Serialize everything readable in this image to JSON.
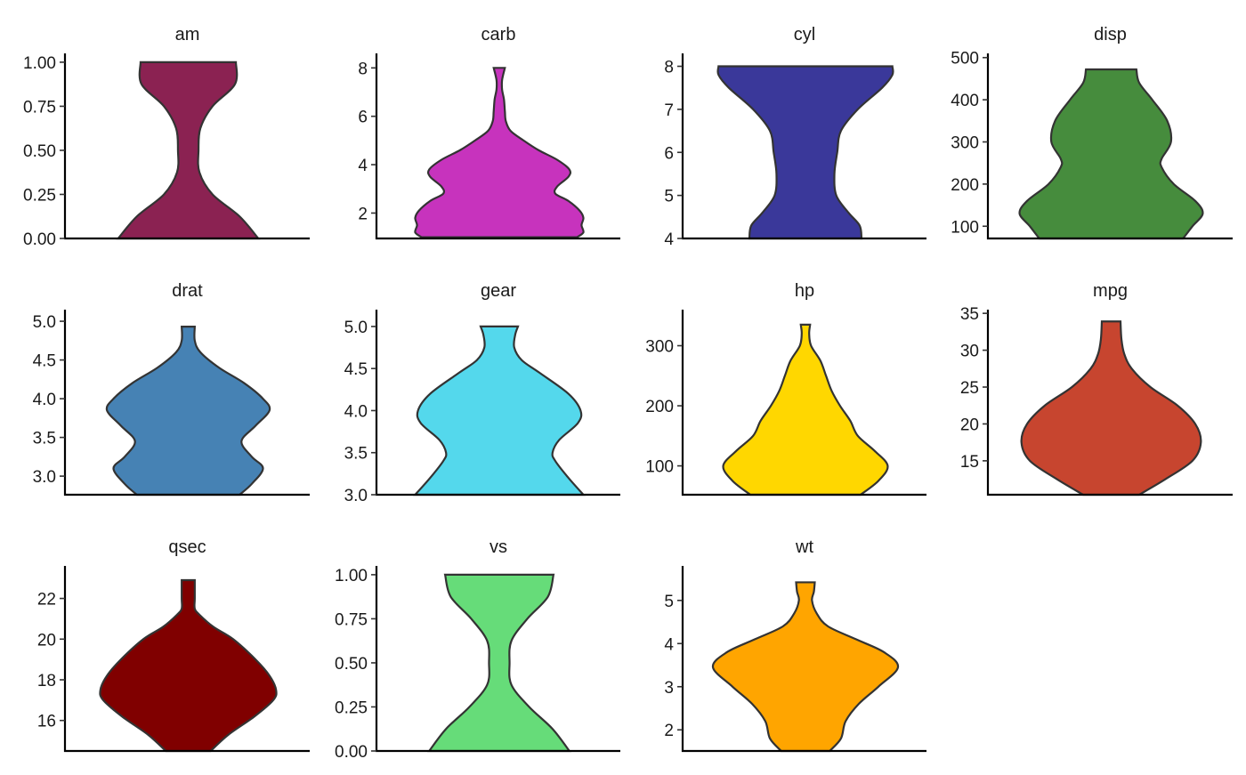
{
  "chart_data": {
    "type": "violin",
    "layout": "faceted grid, 4 columns x 3 rows, free y scales",
    "outline_color": "#333333",
    "panels": [
      {
        "title": "am",
        "fill": "#8B2252",
        "ylim": [
          0,
          1.05
        ],
        "ticks": [
          0,
          0.25,
          0.5,
          0.75,
          1
        ],
        "tick_labels": [
          "0.00",
          "0.25",
          "0.50",
          "0.75",
          "1.00"
        ],
        "density": [
          [
            0,
            0.75
          ],
          [
            0.125,
            0.55
          ],
          [
            0.25,
            0.26
          ],
          [
            0.375,
            0.12
          ],
          [
            0.5,
            0.11
          ],
          [
            0.625,
            0.13
          ],
          [
            0.75,
            0.26
          ],
          [
            0.875,
            0.5
          ],
          [
            1,
            0.51
          ]
        ]
      },
      {
        "title": "carb",
        "fill": "#C733BD",
        "ylim": [
          0.95,
          8.6
        ],
        "ticks": [
          2,
          4,
          6,
          8
        ],
        "tick_labels": [
          "2",
          "4",
          "6",
          "8"
        ],
        "density": [
          [
            1,
            0.83
          ],
          [
            1.2,
            0.9
          ],
          [
            1.5,
            0.88
          ],
          [
            1.8,
            0.9
          ],
          [
            2.1,
            0.86
          ],
          [
            2.5,
            0.74
          ],
          [
            2.8,
            0.6
          ],
          [
            3.1,
            0.62
          ],
          [
            3.5,
            0.74
          ],
          [
            3.8,
            0.75
          ],
          [
            4.2,
            0.62
          ],
          [
            4.6,
            0.42
          ],
          [
            5,
            0.26
          ],
          [
            5.4,
            0.12
          ],
          [
            5.8,
            0.07
          ],
          [
            6.2,
            0.06
          ],
          [
            6.7,
            0.05
          ],
          [
            7.1,
            0.03
          ],
          [
            7.5,
            0.03
          ],
          [
            8,
            0.06
          ]
        ]
      },
      {
        "title": "cyl",
        "fill": "#3A389A",
        "ylim": [
          4,
          8.3
        ],
        "ticks": [
          4,
          5,
          6,
          7,
          8
        ],
        "tick_labels": [
          "4",
          "5",
          "6",
          "7",
          "8"
        ],
        "density": [
          [
            4,
            0.6
          ],
          [
            4.3,
            0.58
          ],
          [
            4.6,
            0.46
          ],
          [
            5,
            0.33
          ],
          [
            5.5,
            0.31
          ],
          [
            6,
            0.34
          ],
          [
            6.5,
            0.38
          ],
          [
            7,
            0.56
          ],
          [
            7.5,
            0.82
          ],
          [
            7.8,
            0.93
          ],
          [
            8,
            0.93
          ]
        ]
      },
      {
        "title": "disp",
        "fill": "#468C3D",
        "ylim": [
          71,
          510
        ],
        "ticks": [
          100,
          200,
          300,
          400,
          500
        ],
        "tick_labels": [
          "100",
          "200",
          "300",
          "400",
          "500"
        ],
        "density": [
          [
            71,
            0.77
          ],
          [
            100,
            0.87
          ],
          [
            130,
            0.98
          ],
          [
            160,
            0.9
          ],
          [
            200,
            0.67
          ],
          [
            240,
            0.54
          ],
          [
            260,
            0.54
          ],
          [
            300,
            0.64
          ],
          [
            350,
            0.6
          ],
          [
            400,
            0.44
          ],
          [
            440,
            0.3
          ],
          [
            472,
            0.27
          ]
        ]
      },
      {
        "title": "drat",
        "fill": "#4682B4",
        "ylim": [
          2.76,
          5.15
        ],
        "ticks": [
          3,
          3.5,
          4,
          4.5,
          5
        ],
        "tick_labels": [
          "3.0",
          "3.5",
          "4.0",
          "4.5",
          "5.0"
        ],
        "density": [
          [
            2.76,
            0.55
          ],
          [
            2.9,
            0.68
          ],
          [
            3.1,
            0.8
          ],
          [
            3.25,
            0.68
          ],
          [
            3.45,
            0.57
          ],
          [
            3.65,
            0.72
          ],
          [
            3.85,
            0.87
          ],
          [
            4,
            0.8
          ],
          [
            4.2,
            0.6
          ],
          [
            4.4,
            0.33
          ],
          [
            4.6,
            0.13
          ],
          [
            4.75,
            0.07
          ],
          [
            4.93,
            0.07
          ]
        ]
      },
      {
        "title": "gear",
        "fill": "#54D8EC",
        "ylim": [
          3,
          5.2
        ],
        "ticks": [
          3,
          3.5,
          4,
          4.5,
          5
        ],
        "tick_labels": [
          "3.0",
          "3.5",
          "4.0",
          "4.5",
          "5.0"
        ],
        "density": [
          [
            3,
            0.9
          ],
          [
            3.2,
            0.74
          ],
          [
            3.4,
            0.6
          ],
          [
            3.5,
            0.57
          ],
          [
            3.65,
            0.64
          ],
          [
            3.85,
            0.84
          ],
          [
            4,
            0.87
          ],
          [
            4.2,
            0.74
          ],
          [
            4.45,
            0.43
          ],
          [
            4.6,
            0.24
          ],
          [
            4.75,
            0.16
          ],
          [
            4.9,
            0.17
          ],
          [
            5,
            0.2
          ]
        ]
      },
      {
        "title": "hp",
        "fill": "#FFD700",
        "ylim": [
          52,
          360
        ],
        "ticks": [
          100,
          200,
          300
        ],
        "tick_labels": [
          "100",
          "200",
          "300"
        ],
        "density": [
          [
            52,
            0.59
          ],
          [
            75,
            0.78
          ],
          [
            100,
            0.88
          ],
          [
            125,
            0.74
          ],
          [
            150,
            0.56
          ],
          [
            175,
            0.48
          ],
          [
            200,
            0.37
          ],
          [
            225,
            0.28
          ],
          [
            250,
            0.22
          ],
          [
            275,
            0.16
          ],
          [
            300,
            0.06
          ],
          [
            320,
            0.04
          ],
          [
            335,
            0.05
          ]
        ]
      },
      {
        "title": "mpg",
        "fill": "#C7452F",
        "ylim": [
          10.4,
          35.5
        ],
        "ticks": [
          15,
          20,
          25,
          30,
          35
        ],
        "tick_labels": [
          "15",
          "20",
          "25",
          "30",
          "35"
        ],
        "density": [
          [
            10.4,
            0.3
          ],
          [
            12.5,
            0.58
          ],
          [
            15,
            0.87
          ],
          [
            17.5,
            0.96
          ],
          [
            20,
            0.9
          ],
          [
            22.5,
            0.71
          ],
          [
            25,
            0.42
          ],
          [
            27.5,
            0.22
          ],
          [
            29.5,
            0.14
          ],
          [
            31.5,
            0.11
          ],
          [
            33.9,
            0.1
          ]
        ]
      },
      {
        "title": "qsec",
        "fill": "#800000",
        "ylim": [
          14.5,
          23.6
        ],
        "ticks": [
          16,
          18,
          20,
          22
        ],
        "tick_labels": [
          "16",
          "18",
          "20",
          "22"
        ],
        "density": [
          [
            14.5,
            0.24
          ],
          [
            15.3,
            0.43
          ],
          [
            16.2,
            0.71
          ],
          [
            17,
            0.91
          ],
          [
            17.5,
            0.94
          ],
          [
            18.2,
            0.87
          ],
          [
            19,
            0.72
          ],
          [
            20,
            0.48
          ],
          [
            20.6,
            0.27
          ],
          [
            21.2,
            0.12
          ],
          [
            21.5,
            0.07
          ],
          [
            22,
            0.07
          ],
          [
            22.9,
            0.07
          ]
        ]
      },
      {
        "title": "vs",
        "fill": "#66DC79",
        "ylim": [
          0,
          1.05
        ],
        "ticks": [
          0,
          0.25,
          0.5,
          0.75,
          1
        ],
        "tick_labels": [
          "0.00",
          "0.25",
          "0.50",
          "0.75",
          "1.00"
        ],
        "density": [
          [
            0,
            0.75
          ],
          [
            0.125,
            0.57
          ],
          [
            0.25,
            0.32
          ],
          [
            0.375,
            0.13
          ],
          [
            0.5,
            0.11
          ],
          [
            0.625,
            0.13
          ],
          [
            0.75,
            0.3
          ],
          [
            0.875,
            0.52
          ],
          [
            1,
            0.58
          ]
        ]
      },
      {
        "title": "wt",
        "fill": "#FFA500",
        "ylim": [
          1.51,
          5.8
        ],
        "ticks": [
          2,
          3,
          4,
          5
        ],
        "tick_labels": [
          "2",
          "3",
          "4",
          "5"
        ],
        "density": [
          [
            1.51,
            0.26
          ],
          [
            1.8,
            0.38
          ],
          [
            2.2,
            0.43
          ],
          [
            2.6,
            0.57
          ],
          [
            3,
            0.78
          ],
          [
            3.45,
            0.99
          ],
          [
            3.8,
            0.84
          ],
          [
            4.1,
            0.54
          ],
          [
            4.4,
            0.24
          ],
          [
            4.7,
            0.12
          ],
          [
            5,
            0.07
          ],
          [
            5.2,
            0.09
          ],
          [
            5.42,
            0.1
          ]
        ]
      }
    ]
  }
}
